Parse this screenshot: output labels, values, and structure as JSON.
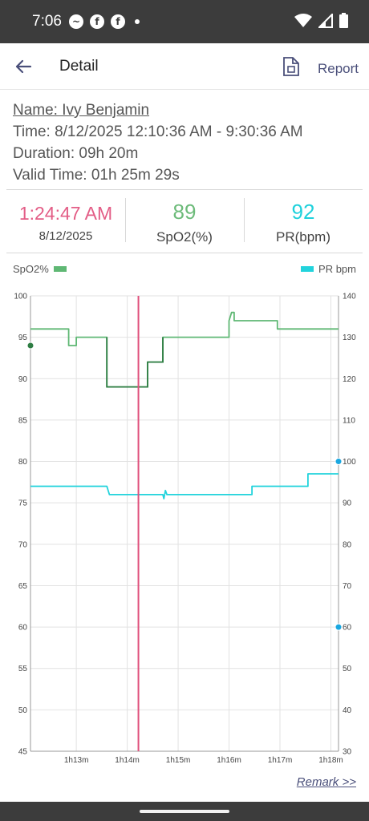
{
  "status_bar": {
    "time": "7:06",
    "left_icons": [
      "messenger-icon",
      "facebook-icon",
      "facebook-icon",
      "dot-icon"
    ],
    "right_icons": [
      "wifi-icon",
      "signal-icon",
      "battery-icon"
    ]
  },
  "app_bar": {
    "title": "Detail",
    "report_label": "Report"
  },
  "info": {
    "name": "Name: Ivy Benjamin",
    "time": "Time: 8/12/2025  12:10:36 AM - 9:30:36 AM",
    "duration": "Duration: 09h 20m",
    "valid_time": "Valid Time: 01h 25m 29s"
  },
  "stats": {
    "cursor_time": "1:24:47 AM",
    "cursor_date": "8/12/2025",
    "spo2_value": "89",
    "spo2_label": "SpO2(%)",
    "pr_value": "92",
    "pr_label": "PR(bpm)"
  },
  "colors": {
    "spo2": "#5fb874",
    "pr": "#22d3dc",
    "cursor": "#e0507c",
    "accent": "#4a4f7a"
  },
  "chart_data": {
    "type": "line",
    "legend": {
      "left": "SpO2%",
      "right": "PR bpm"
    },
    "x_ticks": [
      "1h13m",
      "1h14m",
      "1h15m",
      "1h16m",
      "1h17m",
      "1h18m"
    ],
    "x_tick_minutes": [
      73,
      74,
      75,
      76,
      77,
      78
    ],
    "x_range_minutes": [
      72.1,
      78.15
    ],
    "y_left_label": "SpO2%",
    "y_left_ticks": [
      100,
      95,
      90,
      85,
      80,
      75,
      70,
      65,
      60,
      55,
      50,
      45
    ],
    "y_left_range": [
      45,
      100
    ],
    "y_right_label": "PR bpm",
    "y_right_ticks": [
      140,
      130,
      120,
      110,
      100,
      90,
      80,
      70,
      60,
      50,
      40,
      30
    ],
    "y_right_range": [
      30,
      140
    ],
    "grid": true,
    "cursor_minute": 74.22,
    "series": [
      {
        "name": "SpO2%",
        "axis": "left",
        "points": [
          [
            72.1,
            96
          ],
          [
            72.85,
            96
          ],
          [
            72.85,
            94
          ],
          [
            73.0,
            94
          ],
          [
            73.0,
            95
          ],
          [
            73.6,
            95
          ],
          [
            73.6,
            89
          ],
          [
            74.4,
            89
          ],
          [
            74.4,
            92
          ],
          [
            74.7,
            92
          ],
          [
            74.7,
            95
          ],
          [
            76.0,
            95
          ],
          [
            76.0,
            97
          ],
          [
            76.05,
            98
          ],
          [
            76.1,
            98
          ],
          [
            76.1,
            97
          ],
          [
            76.95,
            97
          ],
          [
            76.95,
            96
          ],
          [
            78.15,
            96
          ]
        ]
      },
      {
        "name": "PR bpm",
        "axis": "right",
        "points": [
          [
            72.1,
            94
          ],
          [
            73.6,
            94
          ],
          [
            73.65,
            92
          ],
          [
            74.7,
            92
          ],
          [
            74.72,
            91
          ],
          [
            74.75,
            93
          ],
          [
            74.78,
            92
          ],
          [
            76.45,
            92
          ],
          [
            76.45,
            94
          ],
          [
            77.55,
            94
          ],
          [
            77.55,
            97
          ],
          [
            78.15,
            97
          ]
        ]
      }
    ],
    "markers": [
      {
        "series": "SpO2%",
        "side": "left",
        "value": 94
      },
      {
        "series": "PR bpm",
        "side": "right",
        "value": 100
      },
      {
        "series": "PR bpm",
        "side": "right",
        "value": 60
      }
    ]
  },
  "remark_label": "Remark >>"
}
